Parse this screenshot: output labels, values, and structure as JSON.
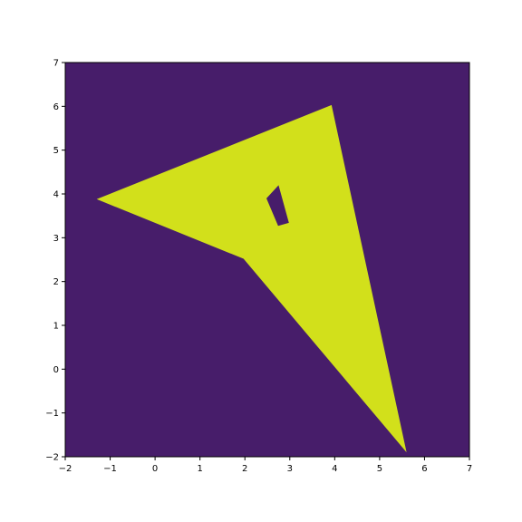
{
  "chart_data": {
    "type": "filled-polygon",
    "xlim": [
      -2,
      7
    ],
    "ylim": [
      -2,
      7
    ],
    "xticks": [
      -2,
      -1,
      0,
      1,
      2,
      3,
      4,
      5,
      6,
      7
    ],
    "yticks": [
      -2,
      -1,
      0,
      1,
      2,
      3,
      4,
      5,
      6,
      7
    ],
    "x_tick_labels": [
      "−2",
      "−1",
      "0",
      "1",
      "2",
      "3",
      "4",
      "5",
      "6",
      "7"
    ],
    "y_tick_labels": [
      "−2",
      "−1",
      "0",
      "1",
      "2",
      "3",
      "4",
      "5",
      "6",
      "7"
    ],
    "grid": false,
    "colors": {
      "background": "#471d6a",
      "fill": "#d2e01b"
    },
    "outer_polygon": [
      [
        -1.3,
        3.88
      ],
      [
        3.93,
        6.03
      ],
      [
        5.6,
        -1.9
      ],
      [
        1.97,
        2.52
      ]
    ],
    "hole_polygon": [
      [
        2.48,
        3.9
      ],
      [
        2.75,
        4.2
      ],
      [
        2.98,
        3.34
      ],
      [
        2.74,
        3.27
      ]
    ]
  }
}
